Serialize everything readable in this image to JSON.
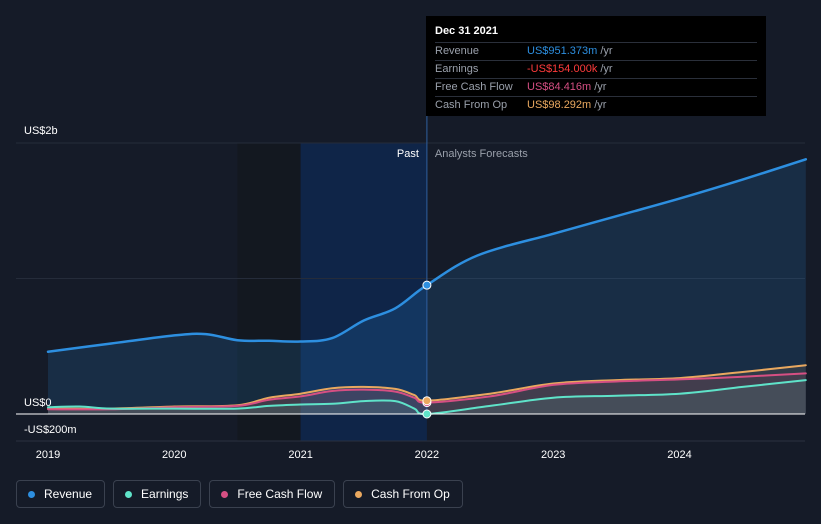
{
  "chart_data": {
    "type": "area",
    "y_axis_labels": [
      "US$2b",
      "US$0",
      "-US$200m"
    ],
    "x_tick_labels": [
      "2019",
      "2020",
      "2021",
      "2022",
      "2023",
      "2024"
    ],
    "x_ticks": [
      2019,
      2020,
      2021,
      2022,
      2023,
      2024
    ],
    "xlim": [
      2018.85,
      2025.0
    ],
    "ylim": [
      -200,
      2000
    ],
    "y_unit": "US$m",
    "past_label": "Past",
    "forecast_label": "Analysts Forecasts",
    "past_end": 2022.0,
    "highlight_start": 2021.0,
    "series": [
      {
        "name": "Revenue",
        "color": "#2d8fe0",
        "x": [
          2019.0,
          2019.5,
          2020.0,
          2020.25,
          2020.5,
          2020.75,
          2021.0,
          2021.25,
          2021.5,
          2021.75,
          2022.0,
          2022.4,
          2023.0,
          2023.5,
          2024.0,
          2024.5,
          2025.0
        ],
        "values": [
          460,
          520,
          580,
          590,
          545,
          540,
          535,
          560,
          690,
          780,
          951,
          1170,
          1330,
          1460,
          1590,
          1730,
          1880
        ]
      },
      {
        "name": "Earnings",
        "color": "#5fe3c9",
        "x": [
          2019.0,
          2019.25,
          2019.5,
          2020.0,
          2020.5,
          2020.75,
          2021.0,
          2021.25,
          2021.5,
          2021.75,
          2021.9,
          2022.0,
          2022.5,
          2023.0,
          2023.5,
          2024.0,
          2024.5,
          2025.0
        ],
        "values": [
          50,
          55,
          40,
          40,
          40,
          60,
          70,
          75,
          95,
          95,
          40,
          0,
          60,
          120,
          135,
          150,
          200,
          250
        ]
      },
      {
        "name": "Free Cash Flow",
        "color": "#d64f83",
        "x": [
          2019.0,
          2019.5,
          2020.0,
          2020.5,
          2020.75,
          2021.0,
          2021.25,
          2021.5,
          2021.75,
          2021.9,
          2022.0,
          2022.5,
          2023.0,
          2023.5,
          2024.0,
          2024.5,
          2025.0
        ],
        "values": [
          35,
          35,
          50,
          60,
          105,
          130,
          170,
          180,
          165,
          120,
          84,
          130,
          215,
          240,
          255,
          275,
          300
        ]
      },
      {
        "name": "Cash From Op",
        "color": "#e9a85f",
        "x": [
          2019.0,
          2019.5,
          2020.0,
          2020.5,
          2020.75,
          2021.0,
          2021.25,
          2021.5,
          2021.75,
          2021.9,
          2022.0,
          2022.5,
          2023.0,
          2023.5,
          2024.0,
          2024.5,
          2025.0
        ],
        "values": [
          40,
          40,
          55,
          65,
          120,
          150,
          190,
          200,
          185,
          140,
          98,
          150,
          225,
          250,
          265,
          310,
          360
        ]
      }
    ],
    "marker_x": 2022.0
  },
  "tooltip": {
    "date": "Dec 31 2021",
    "rows": [
      {
        "label": "Revenue",
        "value": "US$951.373m",
        "unit": "/yr",
        "color": "#2d8fe0"
      },
      {
        "label": "Earnings",
        "value": "-US$154.000k",
        "unit": "/yr",
        "color": "#ff3b3b"
      },
      {
        "label": "Free Cash Flow",
        "value": "US$84.416m",
        "unit": "/yr",
        "color": "#d64f83"
      },
      {
        "label": "Cash From Op",
        "value": "US$98.292m",
        "unit": "/yr",
        "color": "#e9a85f"
      }
    ]
  },
  "legend": {
    "items": [
      {
        "label": "Revenue",
        "color": "#2d8fe0"
      },
      {
        "label": "Earnings",
        "color": "#5fe3c9"
      },
      {
        "label": "Free Cash Flow",
        "color": "#d64f83"
      },
      {
        "label": "Cash From Op",
        "color": "#e9a85f"
      }
    ]
  }
}
